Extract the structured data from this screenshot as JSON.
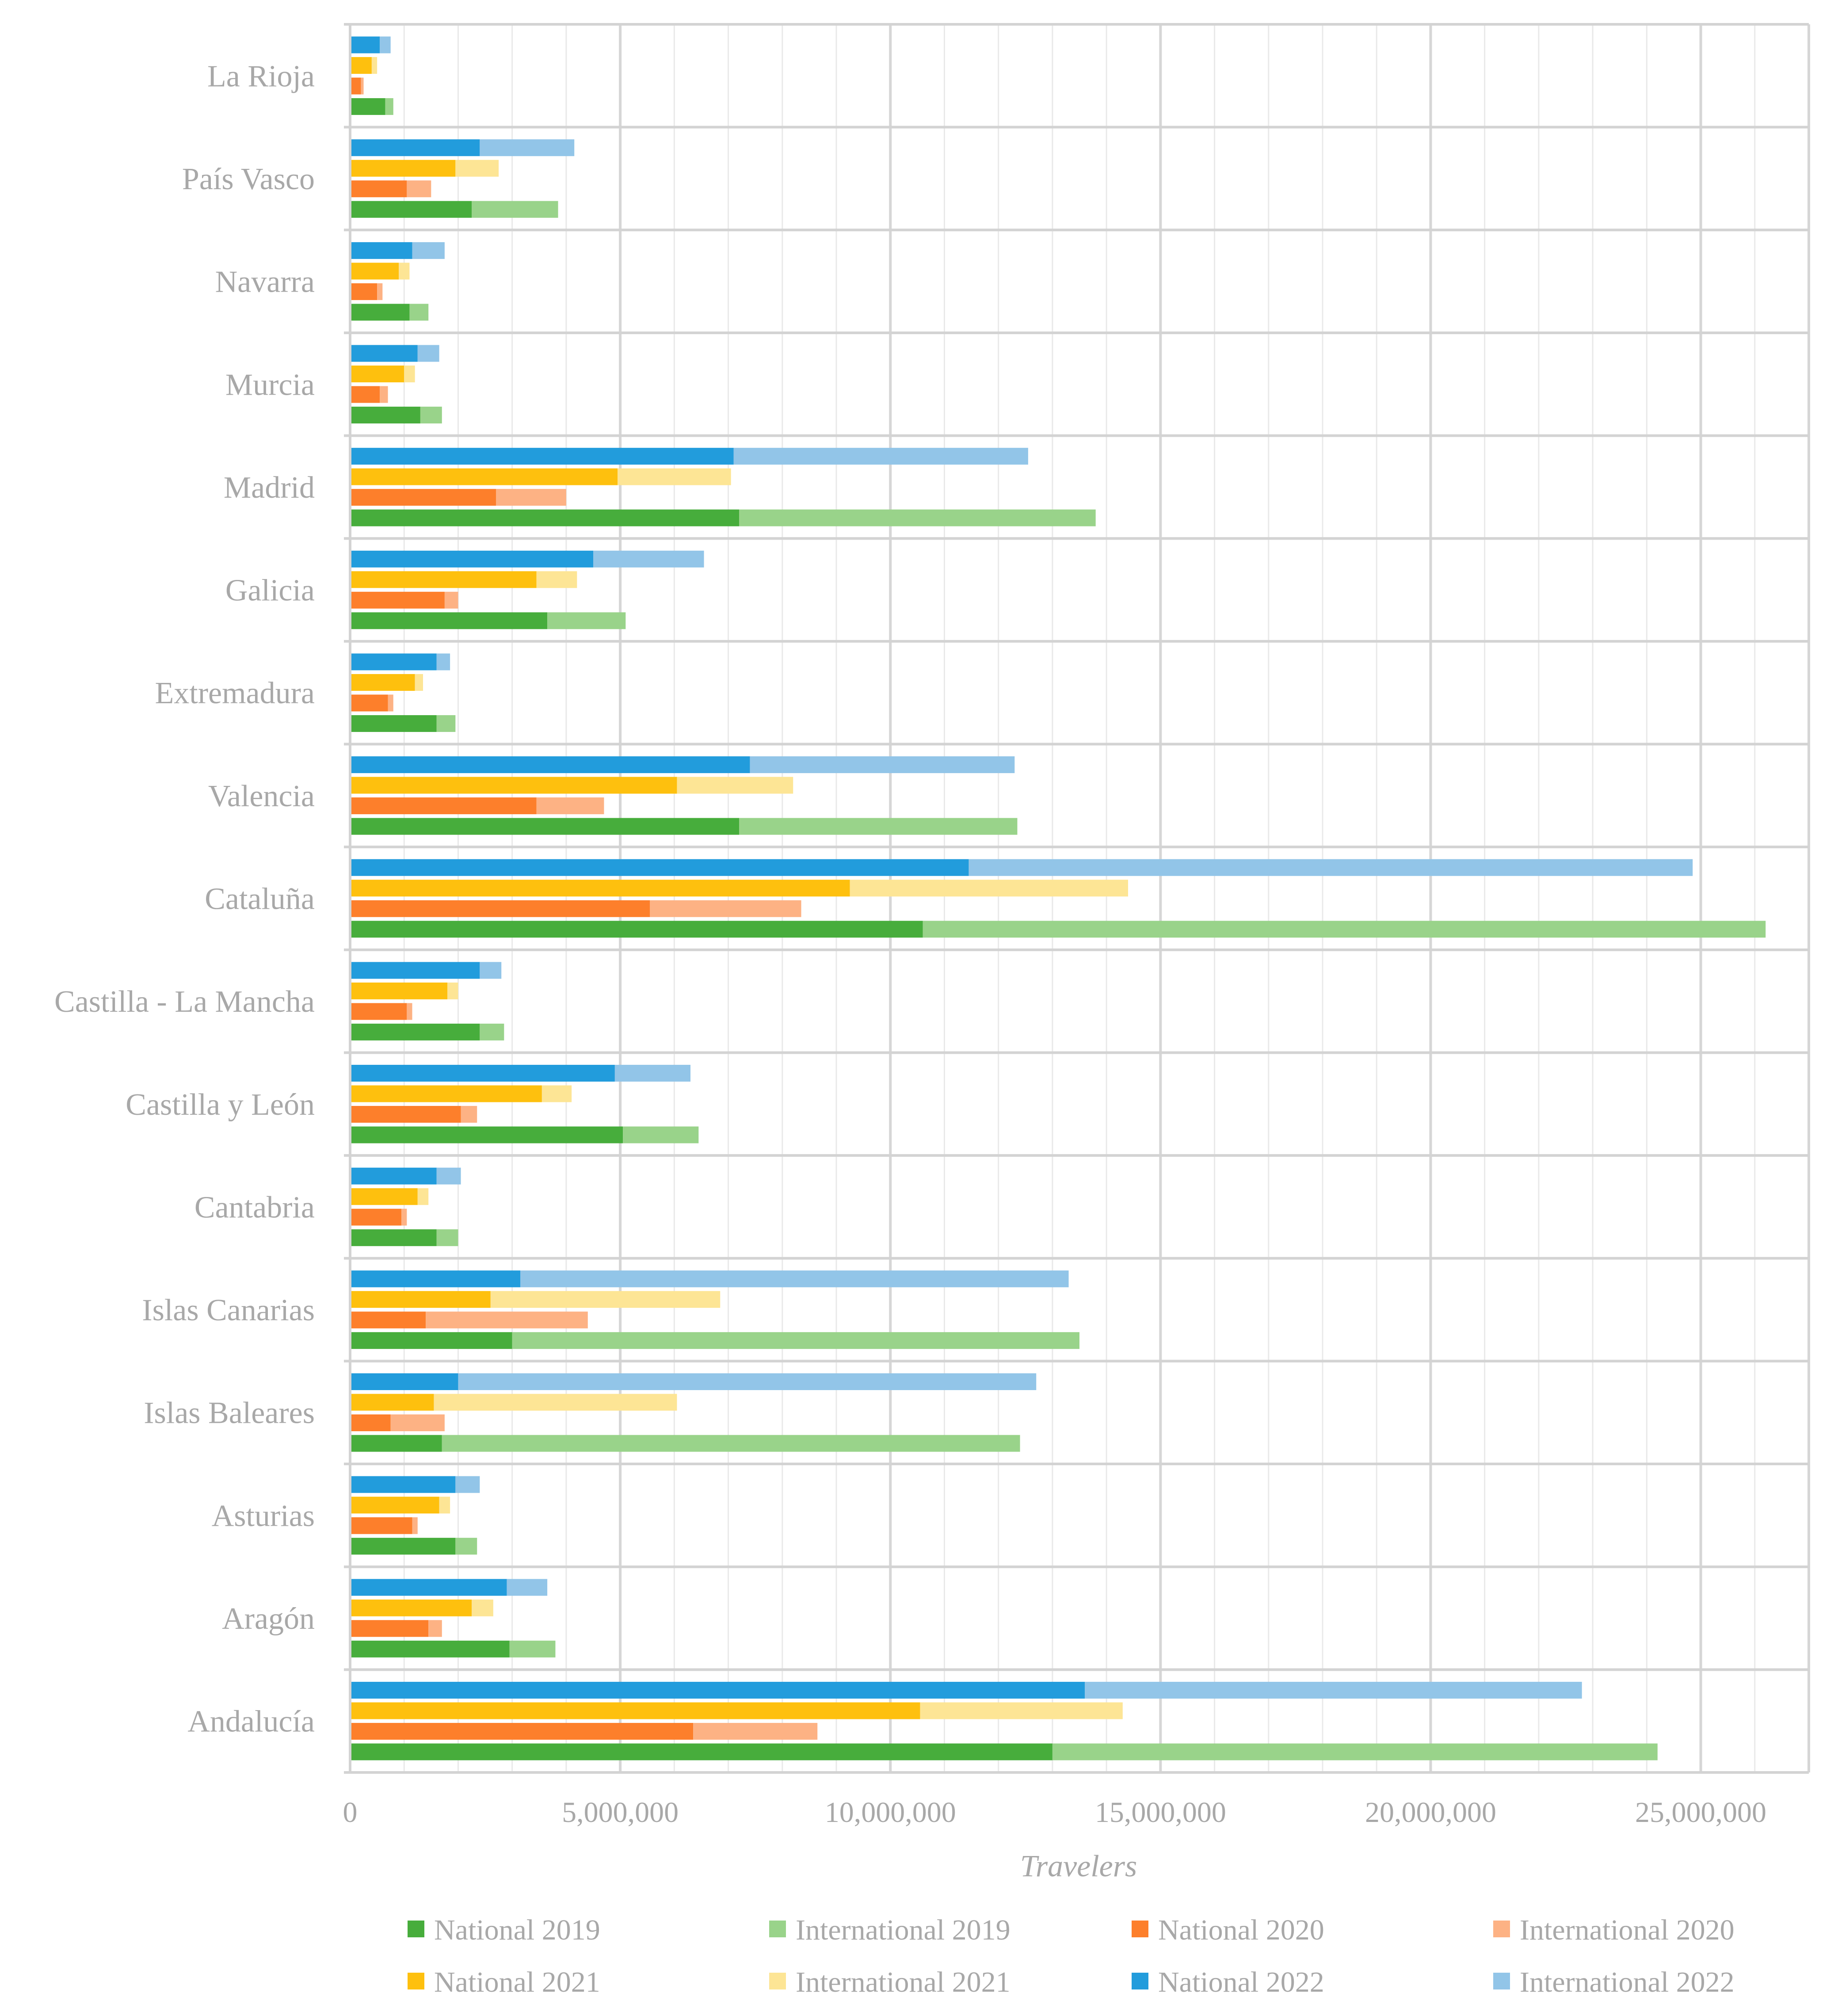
{
  "chart_data": {
    "type": "bar",
    "orientation": "horizontal",
    "stacked_pairs": true,
    "title": "",
    "xlabel": "Travelers",
    "ylabel": "",
    "xlim": [
      0,
      27000000
    ],
    "xticks": [
      0,
      5000000,
      10000000,
      15000000,
      20000000,
      25000000
    ],
    "xtick_labels": [
      "0",
      "5,000,000",
      "10,000,000",
      "15,000,000",
      "20,000,000",
      "25,000,000"
    ],
    "grid": true,
    "legend_position": "bottom",
    "categories": [
      "La Rioja",
      "País Vasco",
      "Navarra",
      "Murcia",
      "Madrid",
      "Galicia",
      "Extremadura",
      "Valencia",
      "Cataluña",
      "Castilla - La Mancha",
      "Castilla y León",
      "Cantabria",
      "Islas Canarias",
      "Islas Baleares",
      "Asturias",
      "Aragón",
      "Andalucía"
    ],
    "series": [
      {
        "name": "National 2019",
        "year": "2019",
        "kind": "national",
        "color": "#47ad3c",
        "values": [
          650000,
          2250000,
          1100000,
          1300000,
          7200000,
          3650000,
          1600000,
          7200000,
          10600000,
          2400000,
          5050000,
          1600000,
          3000000,
          1700000,
          1950000,
          2950000,
          13000000
        ]
      },
      {
        "name": "International 2019",
        "year": "2019",
        "kind": "international",
        "color": "#99d38a",
        "values": [
          150000,
          1600000,
          350000,
          400000,
          6600000,
          1450000,
          350000,
          5150000,
          15600000,
          450000,
          1400000,
          400000,
          10500000,
          10700000,
          400000,
          850000,
          11200000
        ]
      },
      {
        "name": "National 2020",
        "year": "2020",
        "kind": "national",
        "color": "#fd7f2b",
        "values": [
          200000,
          1050000,
          500000,
          550000,
          2700000,
          1750000,
          700000,
          3450000,
          5550000,
          1050000,
          2050000,
          950000,
          1400000,
          750000,
          1150000,
          1450000,
          6350000
        ]
      },
      {
        "name": "International 2020",
        "year": "2020",
        "kind": "international",
        "color": "#fdb284",
        "values": [
          50000,
          450000,
          100000,
          150000,
          1300000,
          250000,
          100000,
          1250000,
          2800000,
          100000,
          300000,
          100000,
          3000000,
          1000000,
          100000,
          250000,
          2300000
        ]
      },
      {
        "name": "National 2021",
        "year": "2021",
        "kind": "national",
        "color": "#fec00e",
        "values": [
          400000,
          1950000,
          900000,
          1000000,
          4950000,
          3450000,
          1200000,
          6050000,
          9250000,
          1800000,
          3550000,
          1250000,
          2600000,
          1550000,
          1650000,
          2250000,
          10550000
        ]
      },
      {
        "name": "International 2021",
        "year": "2021",
        "kind": "international",
        "color": "#fde595",
        "values": [
          100000,
          800000,
          200000,
          200000,
          2100000,
          750000,
          150000,
          2150000,
          5150000,
          200000,
          550000,
          200000,
          4250000,
          4500000,
          200000,
          400000,
          3750000
        ]
      },
      {
        "name": "National 2022",
        "year": "2022",
        "kind": "national",
        "color": "#229cdc",
        "values": [
          550000,
          2400000,
          1150000,
          1250000,
          7100000,
          4500000,
          1600000,
          7400000,
          11450000,
          2400000,
          4900000,
          1600000,
          3150000,
          2000000,
          1950000,
          2900000,
          13600000
        ]
      },
      {
        "name": "International 2022",
        "year": "2022",
        "kind": "international",
        "color": "#92c5e8",
        "values": [
          200000,
          1750000,
          600000,
          400000,
          5450000,
          2050000,
          250000,
          4900000,
          13400000,
          400000,
          1400000,
          450000,
          10150000,
          10700000,
          450000,
          750000,
          9200000
        ]
      }
    ]
  }
}
